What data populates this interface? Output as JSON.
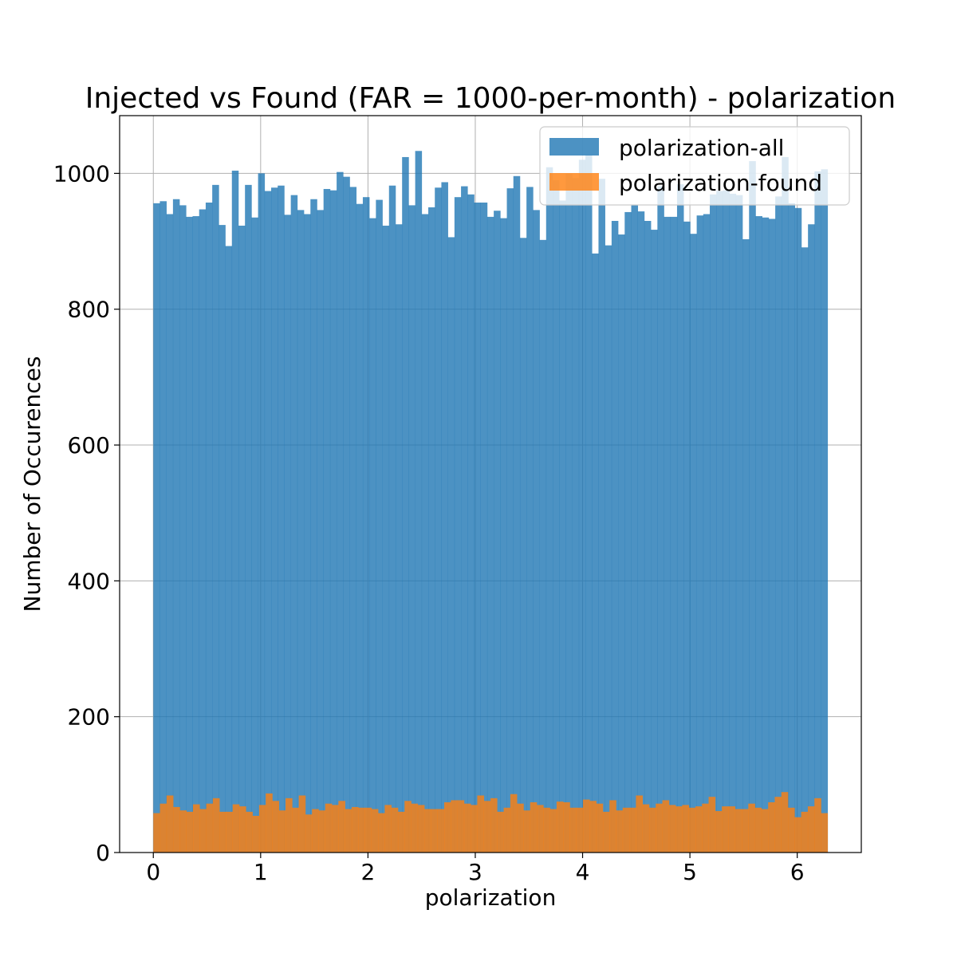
{
  "chart_data": {
    "type": "bar",
    "title": "Injected vs Found (FAR = 1000-per-month) - polarization",
    "xlabel": "polarization",
    "ylabel": "Number of Occurences",
    "xlim": [
      -0.314,
      6.597
    ],
    "ylim": [
      0,
      1085
    ],
    "xticks": [
      "0",
      "1",
      "2",
      "3",
      "4",
      "5",
      "6"
    ],
    "yticks": [
      "0",
      "200",
      "400",
      "600",
      "800",
      "1000"
    ],
    "grid": true,
    "legend_position": "top-right",
    "bin_range": [
      0,
      6.2832
    ],
    "series": [
      {
        "name": "polarization-all",
        "color": "#1f77b4",
        "opacity": 0.8,
        "values": [
          956,
          959,
          940,
          962,
          953,
          936,
          937,
          947,
          957,
          983,
          924,
          893,
          1004,
          923,
          983,
          935,
          1000,
          974,
          979,
          982,
          939,
          968,
          946,
          940,
          962,
          946,
          977,
          975,
          1002,
          995,
          980,
          955,
          965,
          934,
          961,
          923,
          982,
          925,
          1024,
          953,
          1033,
          940,
          950,
          979,
          987,
          906,
          965,
          981,
          969,
          957,
          957,
          936,
          945,
          934,
          978,
          996,
          905,
          980,
          946,
          902,
          1009,
          990,
          960,
          1000,
          993,
          1020,
          1027,
          882,
          992,
          894,
          930,
          910,
          943,
          953,
          944,
          930,
          917,
          981,
          936,
          936,
          984,
          929,
          911,
          938,
          940,
          969,
          974,
          975,
          970,
          968,
          903,
          1018,
          937,
          935,
          933,
          966,
          1024,
          956,
          949,
          891,
          925,
          1003,
          1006
        ]
      },
      {
        "name": "polarization-found",
        "color": "#ff7f0e",
        "opacity": 0.8,
        "values": [
          58,
          72,
          84,
          67,
          62,
          60,
          71,
          64,
          72,
          80,
          60,
          60,
          71,
          68,
          60,
          54,
          70,
          87,
          76,
          62,
          80,
          66,
          84,
          56,
          64,
          62,
          72,
          70,
          76,
          64,
          67,
          66,
          66,
          64,
          58,
          70,
          66,
          60,
          76,
          72,
          70,
          64,
          64,
          64,
          74,
          77,
          77,
          72,
          70,
          84,
          76,
          80,
          60,
          66,
          86,
          72,
          62,
          74,
          70,
          66,
          64,
          75,
          74,
          66,
          66,
          78,
          76,
          72,
          60,
          77,
          62,
          66,
          66,
          84,
          71,
          66,
          72,
          77,
          70,
          68,
          70,
          66,
          68,
          72,
          82,
          61,
          68,
          68,
          64,
          64,
          72,
          66,
          64,
          74,
          82,
          89,
          66,
          52,
          60,
          68,
          80,
          58
        ]
      }
    ]
  }
}
